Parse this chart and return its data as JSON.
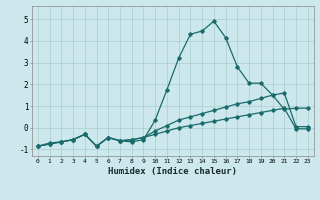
{
  "xlabel": "Humidex (Indice chaleur)",
  "ylabel": "",
  "xlim": [
    -0.5,
    23.5
  ],
  "ylim": [
    -1.3,
    5.6
  ],
  "xticks": [
    0,
    1,
    2,
    3,
    4,
    5,
    6,
    7,
    8,
    9,
    10,
    11,
    12,
    13,
    14,
    15,
    16,
    17,
    18,
    19,
    20,
    21,
    22,
    23
  ],
  "yticks": [
    -1,
    0,
    1,
    2,
    3,
    4,
    5
  ],
  "background_color": "#cce8ec",
  "line_color": "#1a6b6b",
  "grid_color": "#aacccc",
  "series1_x": [
    0,
    1,
    2,
    3,
    4,
    5,
    6,
    7,
    8,
    9,
    10,
    11,
    12,
    13,
    14,
    15,
    16,
    17,
    18,
    19,
    20,
    21,
    22,
    23
  ],
  "series1_y": [
    -0.85,
    -0.7,
    -0.65,
    -0.55,
    -0.3,
    -0.85,
    -0.45,
    -0.6,
    -0.65,
    -0.55,
    0.35,
    1.75,
    3.2,
    4.3,
    4.45,
    4.9,
    4.15,
    2.8,
    2.05,
    2.05,
    1.5,
    0.85,
    0.9,
    0.9
  ],
  "series2_x": [
    0,
    1,
    2,
    3,
    4,
    5,
    6,
    7,
    8,
    9,
    10,
    11,
    12,
    13,
    14,
    15,
    16,
    17,
    18,
    19,
    20,
    21,
    22,
    23
  ],
  "series2_y": [
    -0.85,
    -0.75,
    -0.65,
    -0.55,
    -0.3,
    -0.85,
    -0.45,
    -0.6,
    -0.55,
    -0.45,
    -0.15,
    0.1,
    0.35,
    0.5,
    0.65,
    0.8,
    0.95,
    1.1,
    1.2,
    1.35,
    1.5,
    1.6,
    0.05,
    0.05
  ],
  "series3_x": [
    0,
    1,
    2,
    3,
    4,
    5,
    6,
    7,
    8,
    9,
    10,
    11,
    12,
    13,
    14,
    15,
    16,
    17,
    18,
    19,
    20,
    21,
    22,
    23
  ],
  "series3_y": [
    -0.85,
    -0.75,
    -0.65,
    -0.55,
    -0.3,
    -0.85,
    -0.45,
    -0.6,
    -0.55,
    -0.45,
    -0.3,
    -0.15,
    0.0,
    0.1,
    0.2,
    0.3,
    0.4,
    0.5,
    0.6,
    0.7,
    0.8,
    0.9,
    -0.05,
    -0.05
  ]
}
